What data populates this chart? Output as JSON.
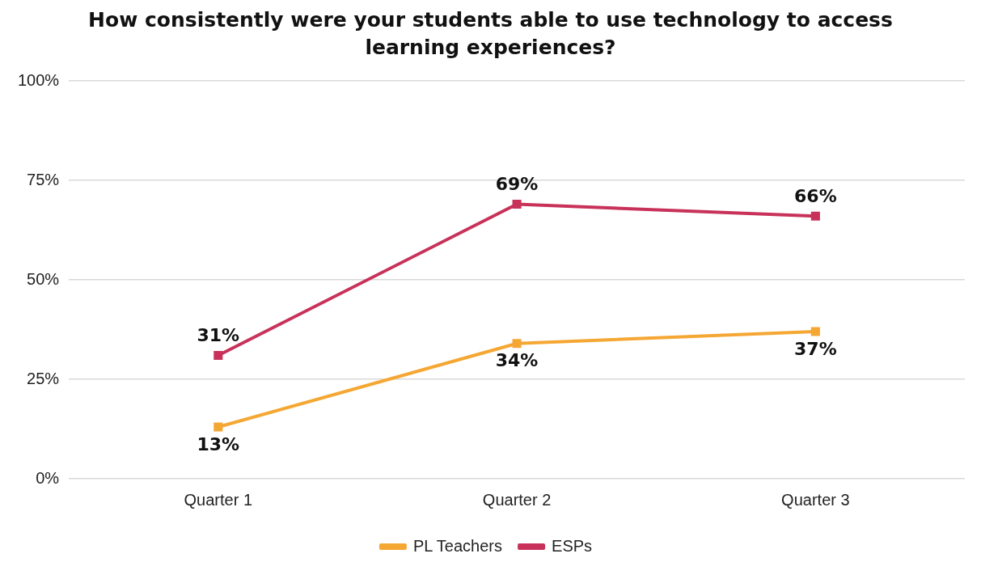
{
  "chart_data": {
    "type": "line",
    "title": "How consistently were your students able to use technology to access learning experiences?",
    "categories": [
      "Quarter 1",
      "Quarter 2",
      "Quarter 3"
    ],
    "series": [
      {
        "name": "PL Teachers",
        "color": "#f5a733",
        "values": [
          13,
          34,
          37
        ],
        "value_labels": [
          "13%",
          "34%",
          "37%"
        ]
      },
      {
        "name": "ESPs",
        "color": "#c8325a",
        "values": [
          31,
          69,
          66
        ],
        "value_labels": [
          "31%",
          "69%",
          "66%"
        ]
      }
    ],
    "ylim": [
      0,
      100
    ],
    "yticks": [
      {
        "value": 0,
        "label": "0%"
      },
      {
        "value": 25,
        "label": "25%"
      },
      {
        "value": 50,
        "label": "50%"
      },
      {
        "value": 75,
        "label": "75%"
      },
      {
        "value": 100,
        "label": "100%"
      }
    ],
    "grid": "y",
    "legend": "bottom",
    "marker": "square"
  }
}
